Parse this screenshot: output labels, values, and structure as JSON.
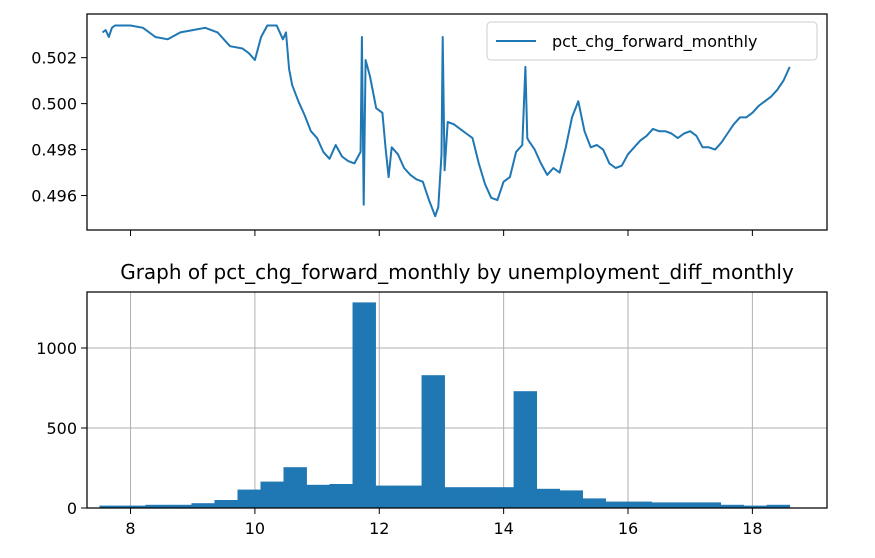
{
  "chart_data": [
    {
      "type": "line",
      "title": "",
      "xlabel": "",
      "ylabel": "",
      "xlim": [
        7.3,
        19.2
      ],
      "ylim": [
        0.9945,
        0.5039
      ],
      "x_tick_values": [
        8,
        10,
        12,
        14,
        16,
        18
      ],
      "y_ticks": [
        "0.496",
        "0.498",
        "0.500",
        "0.502"
      ],
      "y_tick_values": [
        0.496,
        0.498,
        0.5,
        0.502
      ],
      "grid": false,
      "legend_position": "top-right",
      "color": "#1f77b4",
      "series": [
        {
          "name": "pct_chg_forward_monthly",
          "x": [
            7.55,
            7.6,
            7.65,
            7.7,
            7.75,
            7.8,
            7.9,
            8.0,
            8.2,
            8.4,
            8.6,
            8.8,
            9.0,
            9.2,
            9.4,
            9.6,
            9.8,
            9.9,
            10.0,
            10.1,
            10.2,
            10.35,
            10.45,
            10.5,
            10.55,
            10.6,
            10.7,
            10.8,
            10.9,
            11.0,
            11.1,
            11.2,
            11.3,
            11.4,
            11.5,
            11.6,
            11.7,
            11.72,
            11.75,
            11.78,
            11.85,
            11.95,
            12.05,
            12.1,
            12.15,
            12.2,
            12.3,
            12.4,
            12.5,
            12.6,
            12.7,
            12.8,
            12.9,
            12.95,
            13.0,
            13.02,
            13.05,
            13.1,
            13.2,
            13.3,
            13.4,
            13.5,
            13.6,
            13.7,
            13.8,
            13.9,
            14.0,
            14.1,
            14.2,
            14.3,
            14.35,
            14.38,
            14.4,
            14.5,
            14.6,
            14.7,
            14.8,
            14.9,
            15.0,
            15.1,
            15.2,
            15.3,
            15.4,
            15.5,
            15.6,
            15.7,
            15.8,
            15.9,
            16.0,
            16.1,
            16.2,
            16.3,
            16.4,
            16.5,
            16.6,
            16.7,
            16.8,
            16.9,
            17.0,
            17.1,
            17.2,
            17.3,
            17.4,
            17.5,
            17.6,
            17.7,
            17.8,
            17.9,
            18.0,
            18.1,
            18.2,
            18.3,
            18.4,
            18.5,
            18.6
          ],
          "y": [
            0.5031,
            0.5032,
            0.5029,
            0.5033,
            0.5034,
            0.5034,
            0.5034,
            0.5034,
            0.5033,
            0.5029,
            0.5028,
            0.5031,
            0.5032,
            0.5033,
            0.5031,
            0.5025,
            0.5024,
            0.5022,
            0.5019,
            0.5029,
            0.5034,
            0.5034,
            0.5028,
            0.5031,
            0.5015,
            0.5008,
            0.5001,
            0.4995,
            0.4988,
            0.4985,
            0.4979,
            0.4976,
            0.4982,
            0.4977,
            0.4975,
            0.4974,
            0.4979,
            0.5029,
            0.4956,
            0.5019,
            0.5012,
            0.4998,
            0.4996,
            0.4981,
            0.4968,
            0.4981,
            0.4978,
            0.4972,
            0.4969,
            0.4967,
            0.4966,
            0.4958,
            0.4951,
            0.4955,
            0.4978,
            0.5029,
            0.4971,
            0.4992,
            0.4991,
            0.4989,
            0.4987,
            0.4985,
            0.4974,
            0.4965,
            0.4959,
            0.4958,
            0.4966,
            0.4968,
            0.4979,
            0.4982,
            0.5016,
            0.4985,
            0.4984,
            0.498,
            0.4974,
            0.4969,
            0.4972,
            0.497,
            0.4981,
            0.4994,
            0.5001,
            0.4988,
            0.4981,
            0.4982,
            0.498,
            0.4974,
            0.4972,
            0.4973,
            0.4978,
            0.4981,
            0.4984,
            0.4986,
            0.4989,
            0.4988,
            0.4988,
            0.4987,
            0.4985,
            0.4987,
            0.4988,
            0.4986,
            0.4981,
            0.4981,
            0.498,
            0.4983,
            0.4987,
            0.4991,
            0.4994,
            0.4994,
            0.4996,
            0.4999,
            0.5001,
            0.5003,
            0.5006,
            0.501,
            0.5016
          ]
        }
      ]
    },
    {
      "type": "bar",
      "title": "Graph of pct_chg_forward_monthly by unemployment_diff_monthly",
      "xlabel": "",
      "ylabel": "",
      "xlim": [
        7.3,
        19.2
      ],
      "ylim": [
        0,
        1350
      ],
      "x_ticks": [
        "8",
        "10",
        "12",
        "14",
        "16",
        "18"
      ],
      "x_tick_values": [
        8,
        10,
        12,
        14,
        16,
        18
      ],
      "y_ticks": [
        "0",
        "500",
        "1000"
      ],
      "y_tick_values": [
        0,
        500,
        1000
      ],
      "grid": true,
      "color": "#1f77b4",
      "bin_edges": [
        7.5,
        7.87,
        8.24,
        8.61,
        8.98,
        9.35,
        9.72,
        10.09,
        10.46,
        10.83,
        11.2,
        11.57,
        11.94,
        12.31,
        12.68,
        13.05,
        13.42,
        13.79,
        14.16,
        14.53,
        14.9,
        15.27,
        15.64,
        16.01,
        16.38,
        16.75,
        17.12,
        17.49,
        17.86,
        18.23,
        18.6
      ],
      "values": [
        15,
        15,
        20,
        20,
        30,
        50,
        115,
        165,
        255,
        145,
        150,
        1285,
        140,
        140,
        830,
        130,
        130,
        130,
        730,
        120,
        110,
        60,
        40,
        40,
        35,
        35,
        35,
        20,
        15,
        20
      ]
    }
  ]
}
